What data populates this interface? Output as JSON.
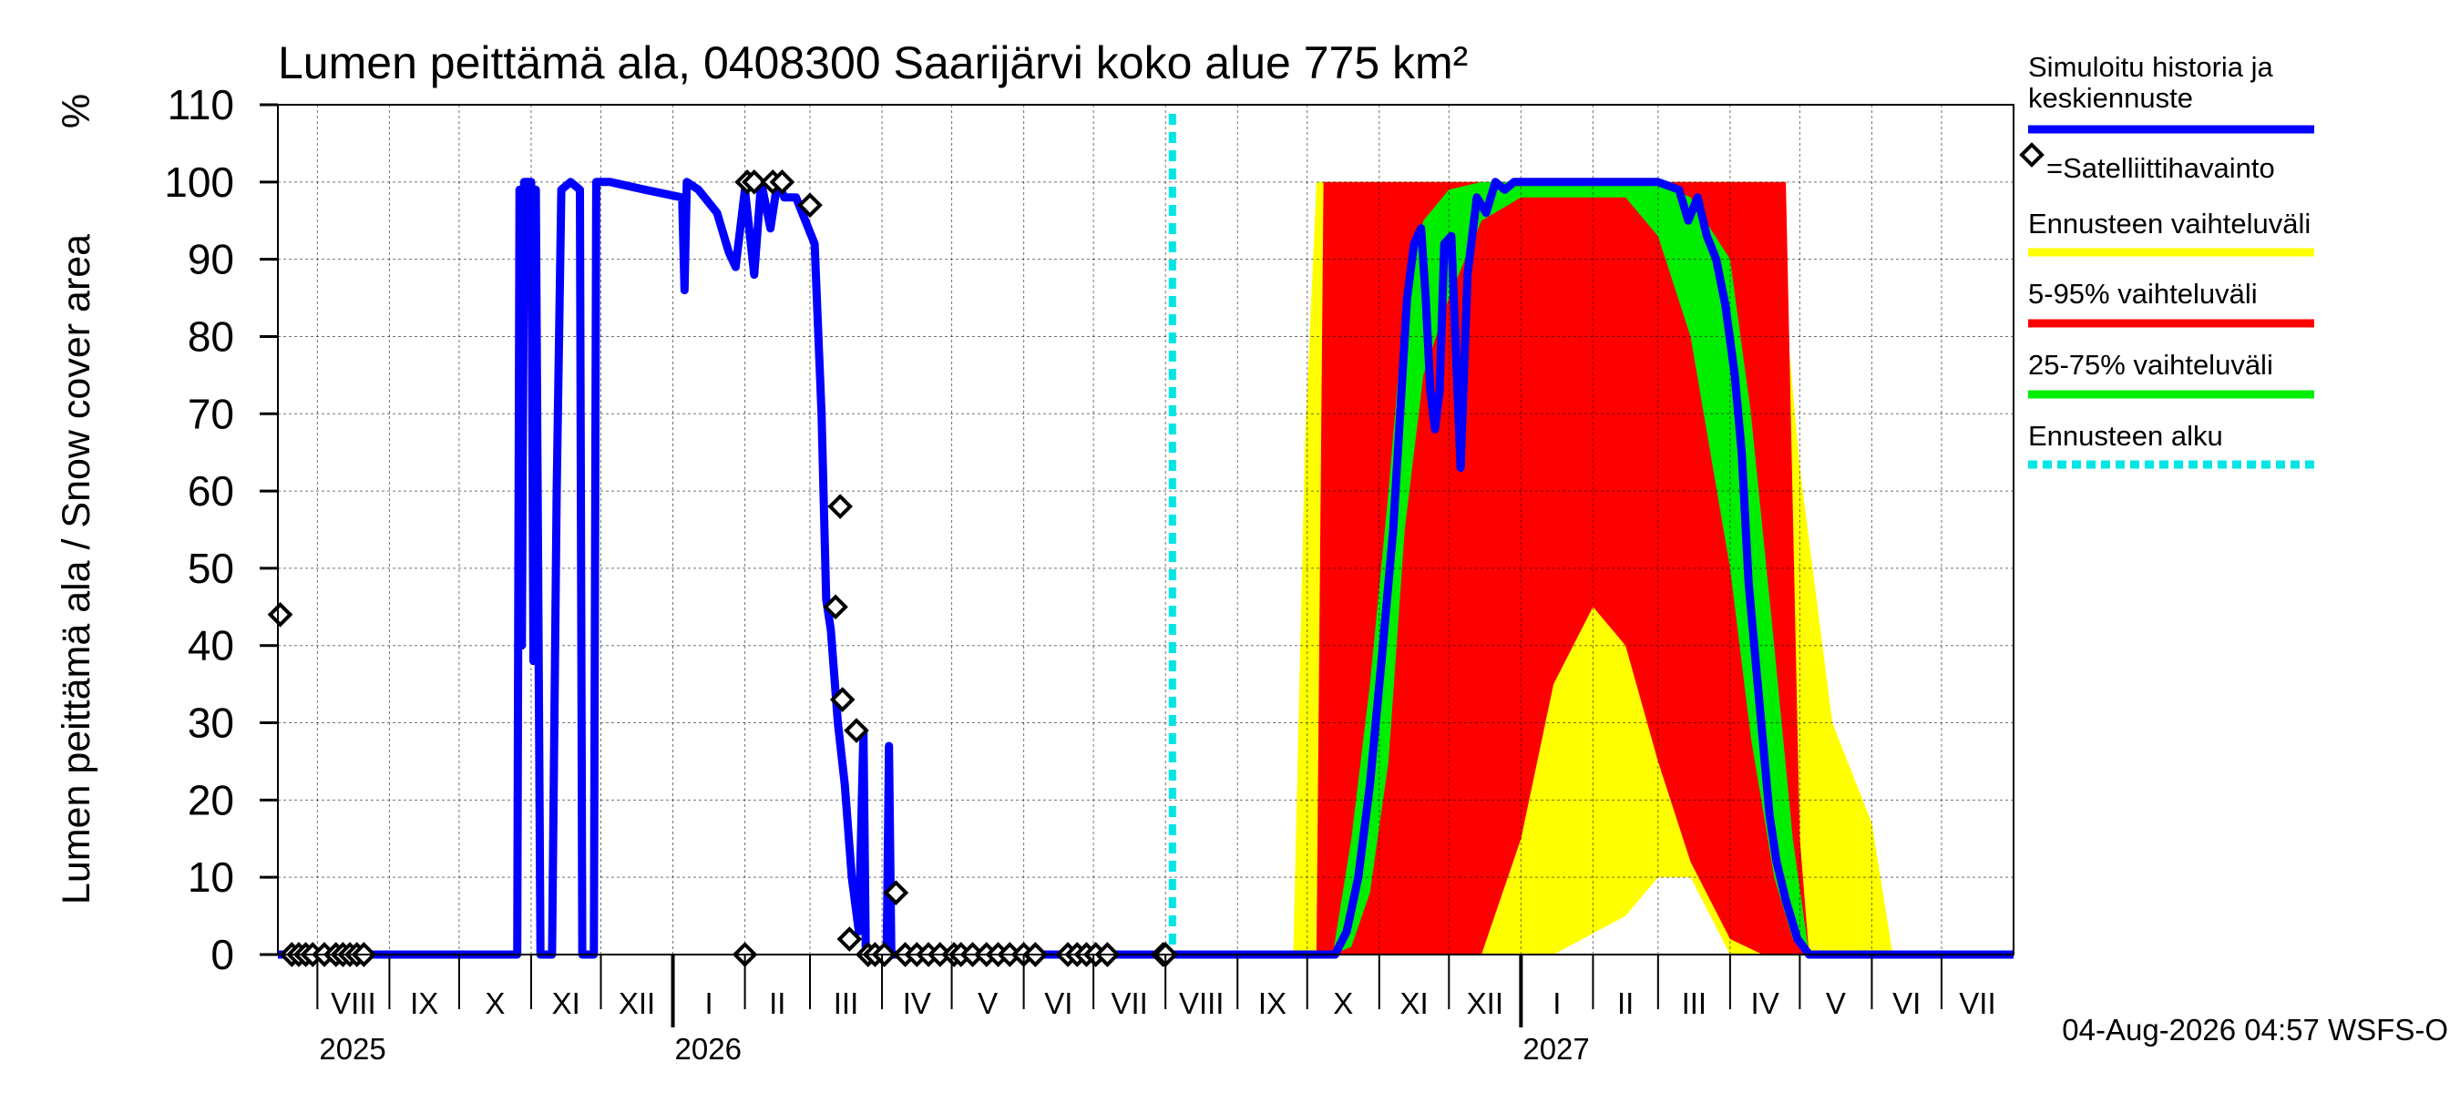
{
  "chart_data": {
    "type": "area",
    "title": "Lumen peittämä ala, 0408300 Saarijärvi koko alue 775 km²",
    "ylabel": "Lumen peittämä ala / Snow cover area",
    "yunit": "%",
    "ylim": [
      0,
      110
    ],
    "yticks": [
      0,
      10,
      20,
      30,
      40,
      50,
      60,
      70,
      80,
      90,
      100,
      110
    ],
    "xlim": [
      "2025-07-15",
      "2027-08-01"
    ],
    "grid": true,
    "legend_position": "right",
    "months": [
      {
        "label": "VIII",
        "start": "2025-08-01"
      },
      {
        "label": "IX",
        "start": "2025-09-01"
      },
      {
        "label": "X",
        "start": "2025-10-01"
      },
      {
        "label": "XI",
        "start": "2025-11-01"
      },
      {
        "label": "XII",
        "start": "2025-12-01"
      },
      {
        "label": "I",
        "start": "2026-01-01"
      },
      {
        "label": "II",
        "start": "2026-02-01"
      },
      {
        "label": "III",
        "start": "2026-03-01"
      },
      {
        "label": "IV",
        "start": "2026-04-01"
      },
      {
        "label": "V",
        "start": "2026-05-01"
      },
      {
        "label": "VI",
        "start": "2026-06-01"
      },
      {
        "label": "VII",
        "start": "2026-07-01"
      },
      {
        "label": "VIII",
        "start": "2026-08-01"
      },
      {
        "label": "IX",
        "start": "2026-09-01"
      },
      {
        "label": "X",
        "start": "2026-10-01"
      },
      {
        "label": "XI",
        "start": "2026-11-01"
      },
      {
        "label": "XII",
        "start": "2026-12-01"
      },
      {
        "label": "I",
        "start": "2027-01-01"
      },
      {
        "label": "II",
        "start": "2027-02-01"
      },
      {
        "label": "III",
        "start": "2027-03-01"
      },
      {
        "label": "IV",
        "start": "2027-04-01"
      },
      {
        "label": "V",
        "start": "2027-05-01"
      },
      {
        "label": "VI",
        "start": "2027-06-01"
      },
      {
        "label": "VII",
        "start": "2027-07-01"
      }
    ],
    "years": [
      {
        "label": "2025",
        "at": "2025-08-01"
      },
      {
        "label": "2026",
        "at": "2026-01-01"
      },
      {
        "label": "2027",
        "at": "2027-01-01"
      }
    ],
    "forecast_start": "2026-08-04",
    "series": [
      {
        "name": "Simuloitu historia ja keskiennuste",
        "color": "#0000ff",
        "points": [
          [
            "2025-07-15",
            0
          ],
          [
            "2025-10-26",
            0
          ],
          [
            "2025-10-27",
            99
          ],
          [
            "2025-10-28",
            40
          ],
          [
            "2025-10-29",
            100
          ],
          [
            "2025-11-01",
            100
          ],
          [
            "2025-11-02",
            38
          ],
          [
            "2025-11-03",
            99
          ],
          [
            "2025-11-05",
            0
          ],
          [
            "2025-11-10",
            0
          ],
          [
            "2025-11-12",
            60
          ],
          [
            "2025-11-14",
            99
          ],
          [
            "2025-11-18",
            100
          ],
          [
            "2025-11-22",
            99
          ],
          [
            "2025-11-23",
            0
          ],
          [
            "2025-11-28",
            0
          ],
          [
            "2025-11-29",
            100
          ],
          [
            "2025-12-05",
            100
          ],
          [
            "2025-12-20",
            99
          ],
          [
            "2026-01-05",
            98
          ],
          [
            "2026-01-06",
            86
          ],
          [
            "2026-01-07",
            100
          ],
          [
            "2026-01-12",
            99
          ],
          [
            "2026-01-20",
            96
          ],
          [
            "2026-01-25",
            91
          ],
          [
            "2026-01-28",
            89
          ],
          [
            "2026-02-01",
            99
          ],
          [
            "2026-02-05",
            88
          ],
          [
            "2026-02-08",
            100
          ],
          [
            "2026-02-12",
            94
          ],
          [
            "2026-02-15",
            100
          ],
          [
            "2026-02-18",
            98
          ],
          [
            "2026-02-23",
            98
          ],
          [
            "2026-03-03",
            92
          ],
          [
            "2026-03-06",
            70
          ],
          [
            "2026-03-08",
            46
          ],
          [
            "2026-03-10",
            42
          ],
          [
            "2026-03-13",
            30
          ],
          [
            "2026-03-16",
            22
          ],
          [
            "2026-03-19",
            10
          ],
          [
            "2026-03-22",
            3
          ],
          [
            "2026-03-24",
            29
          ],
          [
            "2026-03-25",
            1
          ],
          [
            "2026-03-30",
            0
          ],
          [
            "2026-04-03",
            0
          ],
          [
            "2026-04-04",
            27
          ],
          [
            "2026-04-05",
            0
          ],
          [
            "2026-08-04",
            0
          ],
          [
            "2026-10-01",
            0
          ],
          [
            "2026-10-13",
            0
          ],
          [
            "2026-10-18",
            3
          ],
          [
            "2026-10-23",
            10
          ],
          [
            "2026-10-28",
            22
          ],
          [
            "2026-11-02",
            38
          ],
          [
            "2026-11-07",
            55
          ],
          [
            "2026-11-10",
            70
          ],
          [
            "2026-11-13",
            85
          ],
          [
            "2026-11-16",
            92
          ],
          [
            "2026-11-19",
            94
          ],
          [
            "2026-11-21",
            85
          ],
          [
            "2026-11-23",
            73
          ],
          [
            "2026-11-25",
            68
          ],
          [
            "2026-11-27",
            73
          ],
          [
            "2026-11-29",
            92
          ],
          [
            "2026-12-02",
            93
          ],
          [
            "2026-12-06",
            63
          ],
          [
            "2026-12-09",
            88
          ],
          [
            "2026-12-13",
            98
          ],
          [
            "2026-12-17",
            96
          ],
          [
            "2026-12-21",
            100
          ],
          [
            "2026-12-25",
            99
          ],
          [
            "2026-12-29",
            100
          ],
          [
            "2027-01-10",
            100
          ],
          [
            "2027-02-01",
            100
          ],
          [
            "2027-03-01",
            100
          ],
          [
            "2027-03-10",
            99
          ],
          [
            "2027-03-14",
            95
          ],
          [
            "2027-03-18",
            98
          ],
          [
            "2027-03-22",
            93
          ],
          [
            "2027-03-26",
            90
          ],
          [
            "2027-03-30",
            84
          ],
          [
            "2027-04-03",
            75
          ],
          [
            "2027-04-06",
            65
          ],
          [
            "2027-04-09",
            48
          ],
          [
            "2027-04-12",
            38
          ],
          [
            "2027-04-15",
            28
          ],
          [
            "2027-04-18",
            18
          ],
          [
            "2027-04-21",
            12
          ],
          [
            "2027-04-25",
            7
          ],
          [
            "2027-04-30",
            2
          ],
          [
            "2027-05-05",
            0
          ],
          [
            "2027-08-01",
            0
          ]
        ]
      },
      {
        "name": "=Satelliittihavainto",
        "color": "#000000",
        "marker": "diamond",
        "points": [
          [
            "2025-07-16",
            44
          ],
          [
            "2025-07-21",
            0
          ],
          [
            "2025-07-24",
            0
          ],
          [
            "2025-07-27",
            0
          ],
          [
            "2025-07-30",
            0
          ],
          [
            "2025-08-04",
            0
          ],
          [
            "2025-08-09",
            0
          ],
          [
            "2025-08-12",
            0
          ],
          [
            "2025-08-15",
            0
          ],
          [
            "2025-08-18",
            0
          ],
          [
            "2025-08-21",
            0
          ],
          [
            "2026-02-01",
            0
          ],
          [
            "2026-02-02",
            100
          ],
          [
            "2026-02-05",
            100
          ],
          [
            "2026-02-13",
            100
          ],
          [
            "2026-02-17",
            100
          ],
          [
            "2026-03-01",
            97
          ],
          [
            "2026-03-12",
            45
          ],
          [
            "2026-03-14",
            58
          ],
          [
            "2026-03-15",
            33
          ],
          [
            "2026-03-18",
            2
          ],
          [
            "2026-03-21",
            29
          ],
          [
            "2026-03-26",
            0
          ],
          [
            "2026-03-29",
            0
          ],
          [
            "2026-04-02",
            0
          ],
          [
            "2026-04-07",
            8
          ],
          [
            "2026-04-11",
            0
          ],
          [
            "2026-04-16",
            0
          ],
          [
            "2026-04-21",
            0
          ],
          [
            "2026-04-26",
            0
          ],
          [
            "2026-05-02",
            0
          ],
          [
            "2026-05-05",
            0
          ],
          [
            "2026-05-10",
            0
          ],
          [
            "2026-05-16",
            0
          ],
          [
            "2026-05-21",
            0
          ],
          [
            "2026-05-26",
            0
          ],
          [
            "2026-06-01",
            0
          ],
          [
            "2026-06-06",
            0
          ],
          [
            "2026-06-20",
            0
          ],
          [
            "2026-06-24",
            0
          ],
          [
            "2026-06-28",
            0
          ],
          [
            "2026-07-02",
            0
          ],
          [
            "2026-07-07",
            0
          ],
          [
            "2026-07-31",
            0
          ],
          [
            "2026-08-01",
            0
          ]
        ]
      },
      {
        "name": "Ennusteen vaihteluväli",
        "color": "#ffff00",
        "band": [
          [
            "2026-09-25",
            0,
            0
          ],
          [
            "2026-09-30",
            0,
            66
          ],
          [
            "2026-10-05",
            0,
            100
          ],
          [
            "2026-10-15",
            0,
            100
          ],
          [
            "2026-12-01",
            0,
            100
          ],
          [
            "2027-01-15",
            0,
            100
          ],
          [
            "2027-02-15",
            5,
            100
          ],
          [
            "2027-03-01",
            10,
            100
          ],
          [
            "2027-03-15",
            10,
            100
          ],
          [
            "2027-04-01",
            0,
            100
          ],
          [
            "2027-04-20",
            0,
            100
          ],
          [
            "2027-05-01",
            0,
            63
          ],
          [
            "2027-05-15",
            0,
            30
          ],
          [
            "2027-06-01",
            0,
            17
          ],
          [
            "2027-06-10",
            0,
            0
          ]
        ]
      },
      {
        "name": "5-95% vaihteluväli",
        "color": "#ff0000",
        "band": [
          [
            "2026-10-05",
            0,
            0
          ],
          [
            "2026-10-08",
            0,
            100
          ],
          [
            "2026-11-15",
            0,
            100
          ],
          [
            "2026-12-01",
            0,
            100
          ],
          [
            "2026-12-15",
            0,
            100
          ],
          [
            "2027-01-01",
            15,
            100
          ],
          [
            "2027-01-15",
            35,
            100
          ],
          [
            "2027-02-01",
            45,
            100
          ],
          [
            "2027-02-15",
            40,
            100
          ],
          [
            "2027-03-01",
            25,
            100
          ],
          [
            "2027-03-15",
            12,
            100
          ],
          [
            "2027-04-01",
            2,
            100
          ],
          [
            "2027-04-15",
            0,
            100
          ],
          [
            "2027-04-25",
            0,
            100
          ],
          [
            "2027-05-01",
            0,
            15
          ],
          [
            "2027-05-05",
            0,
            0
          ]
        ]
      },
      {
        "name": "25-75% vaihteluväli",
        "color": "#00ee00",
        "band": [
          [
            "2026-10-12",
            0,
            0
          ],
          [
            "2026-10-20",
            1,
            15
          ],
          [
            "2026-10-28",
            8,
            35
          ],
          [
            "2026-11-05",
            25,
            60
          ],
          [
            "2026-11-12",
            55,
            85
          ],
          [
            "2026-11-20",
            75,
            95
          ],
          [
            "2026-12-01",
            85,
            99
          ],
          [
            "2026-12-15",
            95,
            100
          ],
          [
            "2027-01-01",
            98,
            100
          ],
          [
            "2027-02-15",
            98,
            100
          ],
          [
            "2027-03-01",
            93,
            100
          ],
          [
            "2027-03-15",
            80,
            98
          ],
          [
            "2027-04-01",
            50,
            90
          ],
          [
            "2027-04-10",
            28,
            70
          ],
          [
            "2027-04-20",
            10,
            40
          ],
          [
            "2027-04-28",
            2,
            15
          ],
          [
            "2027-05-05",
            0,
            0
          ]
        ]
      },
      {
        "name": "Ennusteen alku",
        "color": "#00e5e5",
        "style": "dashed"
      }
    ]
  },
  "footer": {
    "timestamp": "04-Aug-2026 04:57 WSFS-O"
  }
}
